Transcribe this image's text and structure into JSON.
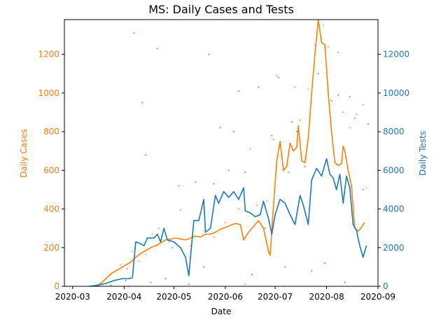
{
  "chart_data": {
    "type": "line",
    "title": "MS: Daily Cases and Tests",
    "xlabel": "Date",
    "ylabel_left": "Daily Cases",
    "ylabel_right": "Daily Tests",
    "x_range": [
      "2020-02-25",
      "2020-09-01"
    ],
    "ylim_left": [
      0,
      1380
    ],
    "ylim_right": [
      0,
      13800
    ],
    "x_ticks": [
      "2020-03",
      "2020-04",
      "2020-05",
      "2020-06",
      "2020-07",
      "2020-08",
      "2020-09"
    ],
    "y_ticks_left": [
      0,
      200,
      400,
      600,
      800,
      1000,
      1200
    ],
    "y_ticks_right": [
      0,
      2000,
      4000,
      6000,
      8000,
      10000,
      12000
    ],
    "grid": false,
    "colors": {
      "cases": "#ff7f0e",
      "tests": "#1f77b4"
    },
    "series": [
      {
        "axis": "left",
        "color": "#ff7f0e",
        "points": [
          [
            "2020-03-11",
            0
          ],
          [
            "2020-03-15",
            3
          ],
          [
            "2020-03-18",
            15
          ],
          [
            "2020-03-21",
            40
          ],
          [
            "2020-03-24",
            65
          ],
          [
            "2020-03-27",
            80
          ],
          [
            "2020-03-30",
            95
          ],
          [
            "2020-04-02",
            110
          ],
          [
            "2020-04-05",
            125
          ],
          [
            "2020-04-08",
            150
          ],
          [
            "2020-04-11",
            170
          ],
          [
            "2020-04-14",
            185
          ],
          [
            "2020-04-17",
            200
          ],
          [
            "2020-04-20",
            210
          ],
          [
            "2020-04-23",
            225
          ],
          [
            "2020-04-26",
            240
          ],
          [
            "2020-04-29",
            245
          ],
          [
            "2020-05-02",
            250
          ],
          [
            "2020-05-05",
            245
          ],
          [
            "2020-05-08",
            240
          ],
          [
            "2020-05-11",
            250
          ],
          [
            "2020-05-14",
            260
          ],
          [
            "2020-05-17",
            255
          ],
          [
            "2020-05-20",
            270
          ],
          [
            "2020-05-23",
            270
          ],
          [
            "2020-05-26",
            280
          ],
          [
            "2020-05-29",
            295
          ],
          [
            "2020-06-01",
            305
          ],
          [
            "2020-06-04",
            315
          ],
          [
            "2020-06-07",
            325
          ],
          [
            "2020-06-10",
            320
          ],
          [
            "2020-06-12",
            240
          ],
          [
            "2020-06-15",
            280
          ],
          [
            "2020-06-18",
            310
          ],
          [
            "2020-06-21",
            340
          ],
          [
            "2020-06-24",
            300
          ],
          [
            "2020-06-27",
            180
          ],
          [
            "2020-06-28",
            160
          ],
          [
            "2020-06-30",
            420
          ],
          [
            "2020-07-02",
            650
          ],
          [
            "2020-07-04",
            750
          ],
          [
            "2020-07-06",
            600
          ],
          [
            "2020-07-08",
            620
          ],
          [
            "2020-07-10",
            740
          ],
          [
            "2020-07-12",
            700
          ],
          [
            "2020-07-14",
            720
          ],
          [
            "2020-07-15",
            830
          ],
          [
            "2020-07-17",
            650
          ],
          [
            "2020-07-19",
            640
          ],
          [
            "2020-07-21",
            770
          ],
          [
            "2020-07-23",
            1000
          ],
          [
            "2020-07-25",
            1200
          ],
          [
            "2020-07-27",
            1380
          ],
          [
            "2020-07-29",
            1260
          ],
          [
            "2020-07-31",
            1250
          ],
          [
            "2020-08-02",
            1000
          ],
          [
            "2020-08-04",
            800
          ],
          [
            "2020-08-06",
            640
          ],
          [
            "2020-08-08",
            625
          ],
          [
            "2020-08-10",
            635
          ],
          [
            "2020-08-11",
            725
          ],
          [
            "2020-08-12",
            700
          ],
          [
            "2020-08-14",
            600
          ],
          [
            "2020-08-16",
            520
          ],
          [
            "2020-08-18",
            300
          ],
          [
            "2020-08-20",
            285
          ],
          [
            "2020-08-22",
            305
          ],
          [
            "2020-08-24",
            330
          ]
        ]
      },
      {
        "axis": "right",
        "color": "#1f77b4",
        "points": [
          [
            "2020-03-11",
            0
          ],
          [
            "2020-03-16",
            50
          ],
          [
            "2020-03-21",
            150
          ],
          [
            "2020-03-26",
            300
          ],
          [
            "2020-03-31",
            400
          ],
          [
            "2020-04-04",
            400
          ],
          [
            "2020-04-06",
            450
          ],
          [
            "2020-04-08",
            2300
          ],
          [
            "2020-04-11",
            2200
          ],
          [
            "2020-04-13",
            2100
          ],
          [
            "2020-04-15",
            2500
          ],
          [
            "2020-04-19",
            2500
          ],
          [
            "2020-04-21",
            2700
          ],
          [
            "2020-04-23",
            2300
          ],
          [
            "2020-04-25",
            3000
          ],
          [
            "2020-04-27",
            2400
          ],
          [
            "2020-05-01",
            2300
          ],
          [
            "2020-05-05",
            2000
          ],
          [
            "2020-05-08",
            1500
          ],
          [
            "2020-05-10",
            550
          ],
          [
            "2020-05-13",
            3400
          ],
          [
            "2020-05-16",
            3400
          ],
          [
            "2020-05-19",
            4500
          ],
          [
            "2020-05-20",
            2800
          ],
          [
            "2020-05-23",
            3000
          ],
          [
            "2020-05-26",
            4700
          ],
          [
            "2020-05-28",
            4300
          ],
          [
            "2020-05-31",
            4900
          ],
          [
            "2020-06-03",
            4600
          ],
          [
            "2020-06-06",
            4900
          ],
          [
            "2020-06-09",
            4500
          ],
          [
            "2020-06-12",
            5100
          ],
          [
            "2020-06-13",
            3900
          ],
          [
            "2020-06-16",
            3800
          ],
          [
            "2020-06-19",
            3600
          ],
          [
            "2020-06-22",
            3700
          ],
          [
            "2020-06-24",
            4400
          ],
          [
            "2020-06-27",
            3500
          ],
          [
            "2020-06-29",
            2700
          ],
          [
            "2020-07-01",
            3700
          ],
          [
            "2020-07-04",
            4500
          ],
          [
            "2020-07-07",
            4300
          ],
          [
            "2020-07-10",
            3700
          ],
          [
            "2020-07-13",
            3200
          ],
          [
            "2020-07-16",
            4700
          ],
          [
            "2020-07-18",
            4200
          ],
          [
            "2020-07-21",
            3200
          ],
          [
            "2020-07-23",
            5500
          ],
          [
            "2020-07-26",
            6100
          ],
          [
            "2020-07-29",
            5700
          ],
          [
            "2020-08-01",
            6600
          ],
          [
            "2020-08-03",
            5800
          ],
          [
            "2020-08-05",
            5600
          ],
          [
            "2020-08-07",
            5000
          ],
          [
            "2020-08-09",
            5800
          ],
          [
            "2020-08-11",
            4300
          ],
          [
            "2020-08-13",
            5700
          ],
          [
            "2020-08-15",
            5100
          ],
          [
            "2020-08-17",
            3200
          ],
          [
            "2020-08-19",
            2900
          ],
          [
            "2020-08-21",
            2100
          ],
          [
            "2020-08-23",
            1500
          ],
          [
            "2020-08-25",
            2100
          ]
        ]
      }
    ],
    "scatter_left": [
      [
        "2020-03-24",
        60
      ],
      [
        "2020-03-30",
        110
      ],
      [
        "2020-04-03",
        90
      ],
      [
        "2020-04-06",
        180
      ],
      [
        "2020-04-10",
        130
      ],
      [
        "2020-04-14",
        165
      ],
      [
        "2020-04-18",
        270
      ],
      [
        "2020-04-22",
        300
      ],
      [
        "2020-04-28",
        230
      ],
      [
        "2020-05-05",
        395
      ],
      [
        "2020-05-11",
        210
      ],
      [
        "2020-05-19",
        405
      ],
      [
        "2020-05-25",
        255
      ],
      [
        "2020-06-01",
        330
      ],
      [
        "2020-06-09",
        400
      ],
      [
        "2020-06-13",
        10
      ],
      [
        "2020-06-16",
        710
      ],
      [
        "2020-06-20",
        420
      ],
      [
        "2020-06-26",
        440
      ],
      [
        "2020-06-30",
        760
      ],
      [
        "2020-07-02",
        1090
      ],
      [
        "2020-07-06",
        0
      ],
      [
        "2020-07-09",
        590
      ],
      [
        "2020-07-13",
        1030
      ],
      [
        "2020-07-16",
        860
      ],
      [
        "2020-07-21",
        1020
      ],
      [
        "2020-07-25",
        1250
      ],
      [
        "2020-07-30",
        1350
      ],
      [
        "2020-08-02",
        1240
      ],
      [
        "2020-08-08",
        1210
      ],
      [
        "2020-08-11",
        900
      ],
      [
        "2020-08-15",
        820
      ],
      [
        "2020-08-19",
        890
      ],
      [
        "2020-08-23",
        940
      ],
      [
        "2020-08-25",
        510
      ]
    ],
    "scatter_right": [
      [
        "2020-03-18",
        100
      ],
      [
        "2020-03-24",
        60
      ],
      [
        "2020-04-02",
        300
      ],
      [
        "2020-04-04",
        0
      ],
      [
        "2020-04-07",
        13100
      ],
      [
        "2020-04-12",
        9500
      ],
      [
        "2020-04-14",
        6800
      ],
      [
        "2020-04-17",
        200
      ],
      [
        "2020-04-21",
        12300
      ],
      [
        "2020-04-26",
        400
      ],
      [
        "2020-04-30",
        2000
      ],
      [
        "2020-05-04",
        5200
      ],
      [
        "2020-05-10",
        100
      ],
      [
        "2020-05-14",
        5400
      ],
      [
        "2020-05-19",
        1000
      ],
      [
        "2020-05-22",
        12000
      ],
      [
        "2020-05-25",
        5300
      ],
      [
        "2020-05-29",
        8200
      ],
      [
        "2020-06-03",
        6000
      ],
      [
        "2020-06-06",
        8000
      ],
      [
        "2020-06-09",
        10100
      ],
      [
        "2020-06-13",
        5900
      ],
      [
        "2020-06-17",
        600
      ],
      [
        "2020-06-21",
        10300
      ],
      [
        "2020-06-25",
        3000
      ],
      [
        "2020-06-29",
        7800
      ],
      [
        "2020-07-03",
        10800
      ],
      [
        "2020-07-07",
        1000
      ],
      [
        "2020-07-11",
        8500
      ],
      [
        "2020-07-14",
        8000
      ],
      [
        "2020-07-19",
        6200
      ],
      [
        "2020-07-23",
        800
      ],
      [
        "2020-07-27",
        11000
      ],
      [
        "2020-07-31",
        1200
      ],
      [
        "2020-08-04",
        9600
      ],
      [
        "2020-08-08",
        9900
      ],
      [
        "2020-08-12",
        200
      ],
      [
        "2020-08-15",
        9800
      ],
      [
        "2020-08-18",
        8700
      ],
      [
        "2020-08-23",
        5000
      ],
      [
        "2020-08-26",
        8400
      ]
    ]
  }
}
